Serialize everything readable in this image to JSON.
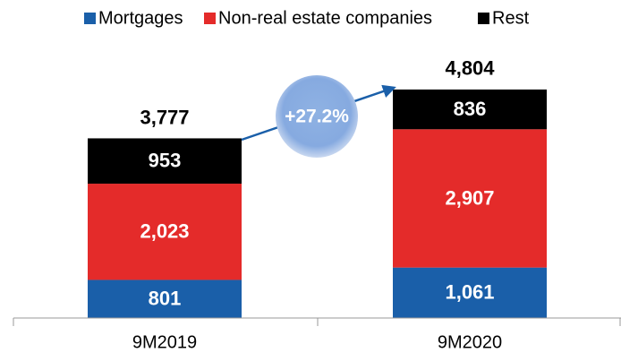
{
  "chart_data": {
    "type": "stacked_bar",
    "categories": [
      "9M2019",
      "9M2020"
    ],
    "series": [
      {
        "name": "Mortgages",
        "color": "#1a5fa9",
        "values": [
          801,
          1061
        ],
        "value_labels": [
          "801",
          "1,061"
        ]
      },
      {
        "name": "Non-real estate companies",
        "color": "#e42b2a",
        "values": [
          2023,
          2907
        ],
        "value_labels": [
          "2,023",
          "2,907"
        ]
      },
      {
        "name": "Rest",
        "color": "#000000",
        "values": [
          953,
          836
        ],
        "value_labels": [
          "953",
          "836"
        ]
      }
    ],
    "totals": [
      3777,
      4804
    ],
    "total_labels": [
      "3,777",
      "4,804"
    ],
    "annotation": "+27.2%",
    "ylim": [
      0,
      5000
    ],
    "legend": "top"
  }
}
